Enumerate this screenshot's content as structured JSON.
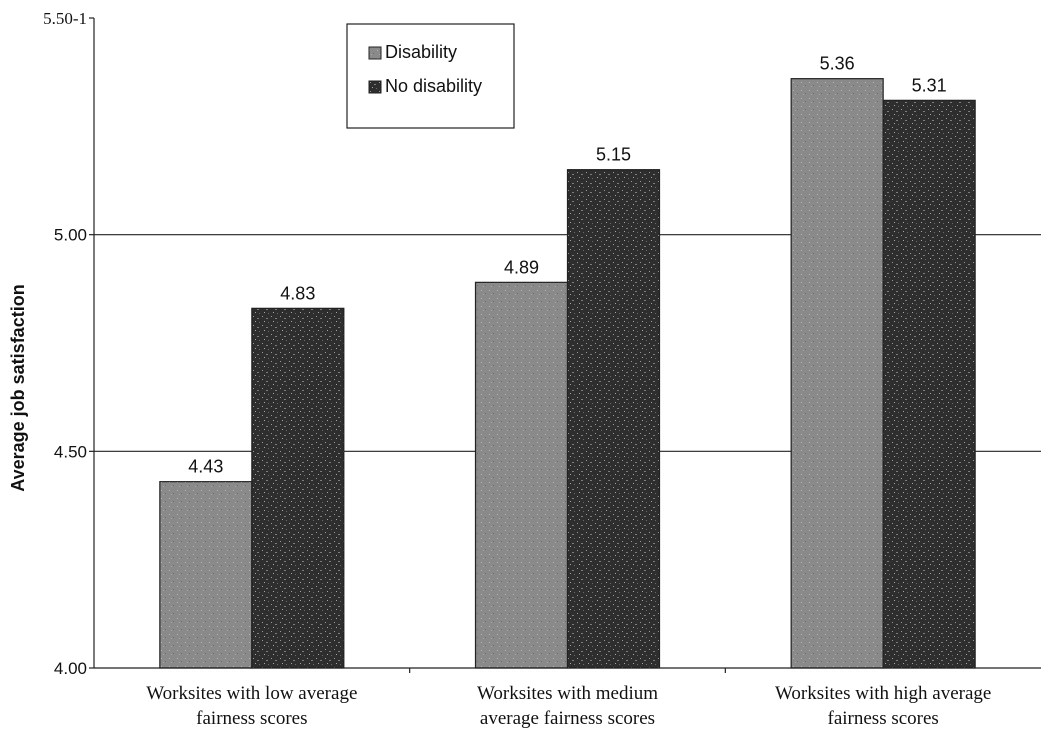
{
  "chart_data": {
    "type": "bar",
    "ylabel": "Average job satisfaction",
    "ylim": [
      4.0,
      5.5
    ],
    "yticks": [
      4.0,
      4.5,
      5.0,
      5.5
    ],
    "ytick_labels": [
      "4.00",
      "4.50",
      "5.00",
      "5.50-1"
    ],
    "gridlines": [
      4.5,
      5.0
    ],
    "categories": [
      [
        "Worksites with low average",
        "fairness scores"
      ],
      [
        "Worksites with medium",
        "average fairness scores"
      ],
      [
        "Worksites with high average",
        "fairness scores"
      ]
    ],
    "series": [
      {
        "name": "Disability",
        "values": [
          4.43,
          4.89,
          5.36
        ],
        "labels": [
          "4.43",
          "4.89",
          "5.36"
        ],
        "color": "#8a8a8a"
      },
      {
        "name": "No disability",
        "values": [
          4.83,
          5.15,
          5.31
        ],
        "labels": [
          "4.83",
          "5.15",
          "5.31"
        ],
        "color": "#2e2e2e"
      }
    ],
    "legend_position": "top-center"
  }
}
